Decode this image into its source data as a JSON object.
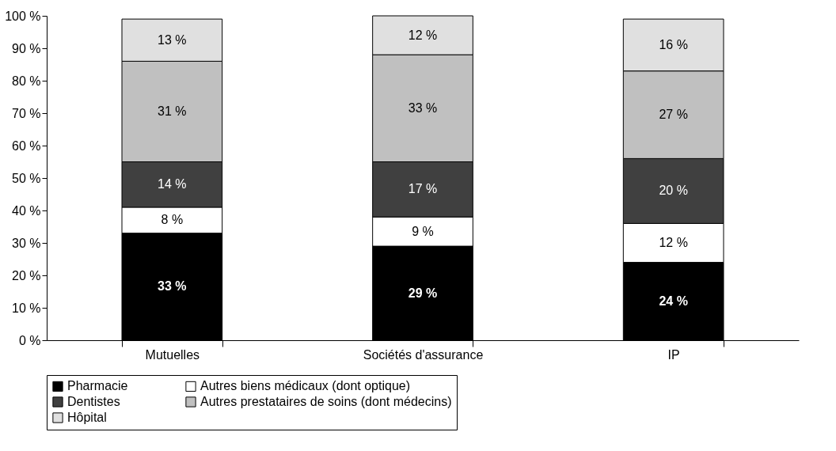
{
  "chart_data": {
    "type": "bar",
    "stacked": true,
    "categories": [
      "Mutuelles",
      "Sociétés d'assurance",
      "IP"
    ],
    "series": [
      {
        "name": "Pharmacie",
        "color": "#000000",
        "values": [
          33,
          29,
          24
        ],
        "value_labels": [
          "33 %",
          "29 %",
          "24 %"
        ]
      },
      {
        "name": "Autres biens médicaux (dont optique)",
        "color": "#ffffff",
        "values": [
          8,
          9,
          12
        ],
        "value_labels": [
          "8 %",
          "9 %",
          "12 %"
        ]
      },
      {
        "name": "Dentistes",
        "color": "#404040",
        "values": [
          14,
          17,
          20
        ],
        "value_labels": [
          "14 %",
          "17 %",
          "20 %"
        ]
      },
      {
        "name": "Autres prestataires de soins (dont médecins)",
        "color": "#c0c0c0",
        "values": [
          31,
          33,
          27
        ],
        "value_labels": [
          "31 %",
          "33 %",
          "27 %"
        ]
      },
      {
        "name": "Hôpital",
        "color": "#e0e0e0",
        "values": [
          13,
          12,
          16
        ],
        "value_labels": [
          "13 %",
          "12 %",
          "16 %"
        ]
      }
    ],
    "ylim": [
      0,
      100
    ],
    "yticks": [
      {
        "value": 0,
        "label": "0 %"
      },
      {
        "value": 10,
        "label": "10 %"
      },
      {
        "value": 20,
        "label": "20 %"
      },
      {
        "value": 30,
        "label": "30 %"
      },
      {
        "value": 40,
        "label": "40 %"
      },
      {
        "value": 50,
        "label": "50 %"
      },
      {
        "value": 60,
        "label": "60 %"
      },
      {
        "value": 70,
        "label": "70 %"
      },
      {
        "value": 80,
        "label": "80 %"
      },
      {
        "value": 90,
        "label": "90 %"
      },
      {
        "value": 100,
        "label": "100 %"
      }
    ],
    "grid": false,
    "legend": "bottom"
  }
}
